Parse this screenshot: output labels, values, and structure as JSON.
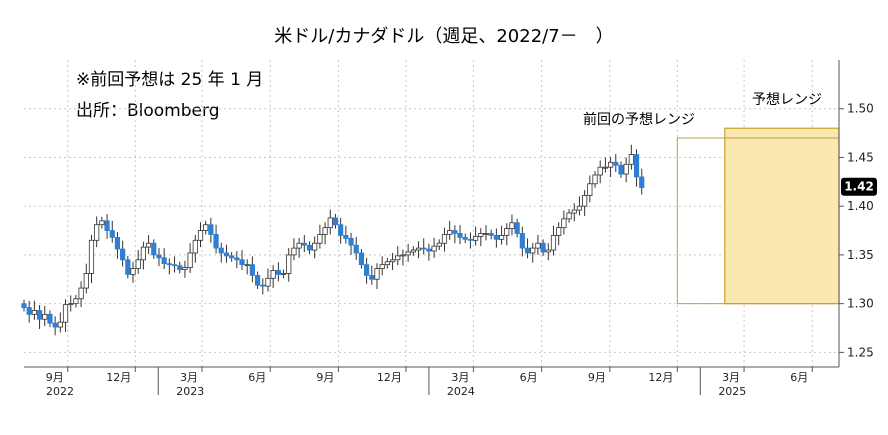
{
  "chart_data": {
    "type": "candlestick",
    "title": "米ドル/カナダドル（週足、2022/7－　）",
    "notes": [
      "※前回予想は 25 年 1 月",
      "出所：Bloomberg"
    ],
    "ylim": [
      1.235,
      1.55
    ],
    "yticks": [
      1.25,
      1.3,
      1.35,
      1.4,
      1.45,
      1.5
    ],
    "ytick_labels": [
      "1.25",
      "1.30",
      "1.35",
      "1.40",
      "1.45",
      "1.50"
    ],
    "x_start": "2022-07-04",
    "x_end": "2025-07-07",
    "month_ticks": [
      {
        "date": "2022-09-01",
        "label": "9月"
      },
      {
        "date": "2022-12-01",
        "label": "12月"
      },
      {
        "date": "2023-03-01",
        "label": "3月"
      },
      {
        "date": "2023-06-01",
        "label": "6月"
      },
      {
        "date": "2023-09-01",
        "label": "9月"
      },
      {
        "date": "2023-12-01",
        "label": "12月"
      },
      {
        "date": "2024-03-01",
        "label": "3月"
      },
      {
        "date": "2024-06-01",
        "label": "6月"
      },
      {
        "date": "2024-09-01",
        "label": "9月"
      },
      {
        "date": "2024-12-01",
        "label": "12月"
      },
      {
        "date": "2025-03-01",
        "label": "3月"
      },
      {
        "date": "2025-06-01",
        "label": "6月"
      }
    ],
    "year_labels": [
      {
        "date": "2022-07-04",
        "label": "2022"
      },
      {
        "date": "2023-01-01",
        "label": "2023"
      },
      {
        "date": "2024-01-01",
        "label": "2024"
      },
      {
        "date": "2025-01-01",
        "label": "2025"
      }
    ],
    "last_value_label": "1.42",
    "last_value": 1.42,
    "previous_forecast_range": {
      "label": "前回の予想レンジ",
      "x_start": "2024-12-01",
      "x_end": "2025-07-07",
      "low": 1.3,
      "high": 1.47
    },
    "forecast_range": {
      "label": "予想レンジ",
      "x_start": "2025-02-03",
      "x_end": "2025-07-07",
      "low": 1.3,
      "high": 1.48
    },
    "candle_up_color": "#ffffff",
    "candle_down_color": "#2f7fd4",
    "forecast_fill_color": "#fbe7b0",
    "forecast_stroke_color": "#c9a227",
    "prev_range_stroke_color": "#bfa040",
    "closes": [
      1.296,
      1.289,
      1.293,
      1.284,
      1.289,
      1.28,
      1.276,
      1.281,
      1.299,
      1.3,
      1.305,
      1.316,
      1.331,
      1.365,
      1.381,
      1.385,
      1.375,
      1.368,
      1.356,
      1.345,
      1.33,
      1.336,
      1.345,
      1.358,
      1.362,
      1.35,
      1.347,
      1.341,
      1.34,
      1.339,
      1.335,
      1.337,
      1.352,
      1.365,
      1.375,
      1.381,
      1.371,
      1.357,
      1.352,
      1.349,
      1.347,
      1.345,
      1.34,
      1.34,
      1.329,
      1.319,
      1.318,
      1.326,
      1.334,
      1.33,
      1.331,
      1.35,
      1.357,
      1.362,
      1.36,
      1.355,
      1.362,
      1.371,
      1.378,
      1.388,
      1.381,
      1.37,
      1.367,
      1.36,
      1.352,
      1.34,
      1.329,
      1.325,
      1.336,
      1.34,
      1.343,
      1.345,
      1.349,
      1.35,
      1.353,
      1.355,
      1.357,
      1.356,
      1.354,
      1.359,
      1.362,
      1.371,
      1.375,
      1.372,
      1.368,
      1.366,
      1.365,
      1.369,
      1.372,
      1.372,
      1.37,
      1.366,
      1.37,
      1.377,
      1.383,
      1.372,
      1.357,
      1.352,
      1.357,
      1.362,
      1.353,
      1.355,
      1.37,
      1.378,
      1.387,
      1.393,
      1.396,
      1.4,
      1.411,
      1.423,
      1.432,
      1.44,
      1.44,
      1.445,
      1.442,
      1.433,
      1.443,
      1.453,
      1.43,
      1.419
    ]
  }
}
